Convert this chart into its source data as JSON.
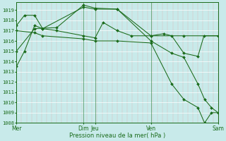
{
  "title": "",
  "xlabel": "Pression niveau de la mer( hPa )",
  "bg_color": "#c8eaea",
  "line_color": "#1a6b1a",
  "grid_color_v": "#ddb8b8",
  "grid_color_h": "#ffffff",
  "ylim": [
    1008,
    1019.8
  ],
  "yticks": [
    1008,
    1009,
    1010,
    1011,
    1012,
    1013,
    1014,
    1015,
    1016,
    1017,
    1018,
    1019
  ],
  "day_positions": [
    0.0,
    0.333,
    0.39,
    0.667,
    1.0
  ],
  "day_labels": [
    "Mer",
    "Dim",
    "Jeu",
    "Ven",
    "Sam"
  ],
  "lines": [
    {
      "x": [
        0.0,
        0.04,
        0.09,
        0.13,
        0.333,
        0.39,
        0.5,
        0.667,
        0.83,
        1.0
      ],
      "y": [
        1013.5,
        1015.0,
        1017.5,
        1017.2,
        1019.3,
        1019.1,
        1019.1,
        1016.5,
        1016.5,
        1016.5
      ]
    },
    {
      "x": [
        0.0,
        0.04,
        0.09,
        0.13,
        0.2,
        0.333,
        0.39,
        0.43,
        0.5,
        0.57,
        0.667,
        0.73,
        0.77,
        0.83,
        0.9,
        0.93,
        1.0
      ],
      "y": [
        1017.5,
        1018.5,
        1018.5,
        1017.2,
        1017.0,
        1016.5,
        1016.3,
        1017.8,
        1017.0,
        1016.5,
        1016.5,
        1016.7,
        1016.5,
        1014.8,
        1014.5,
        1016.5,
        1016.5
      ]
    },
    {
      "x": [
        0.0,
        0.09,
        0.13,
        0.333,
        0.39,
        0.5,
        0.667,
        0.77,
        0.83,
        0.9,
        0.933,
        0.967,
        1.0
      ],
      "y": [
        1017.0,
        1016.8,
        1016.5,
        1016.2,
        1016.0,
        1016.0,
        1015.8,
        1011.8,
        1010.3,
        1009.5,
        1008.0,
        1009.0,
        1009.0
      ]
    },
    {
      "x": [
        0.0,
        0.09,
        0.2,
        0.333,
        0.39,
        0.5,
        0.667,
        0.77,
        0.83,
        0.9,
        0.933,
        0.967,
        1.0
      ],
      "y": [
        1015.0,
        1017.2,
        1017.3,
        1019.5,
        1019.2,
        1019.1,
        1016.0,
        1014.8,
        1014.4,
        1011.8,
        1010.3,
        1009.5,
        1009.0
      ]
    }
  ],
  "vline_positions": [
    0.0,
    0.333,
    0.39,
    0.667,
    1.0
  ],
  "marker": "D",
  "markersize": 2.0,
  "linewidth": 0.75,
  "xlabel_fontsize": 6.0,
  "ytick_fontsize": 5.0,
  "xtick_fontsize": 5.5
}
